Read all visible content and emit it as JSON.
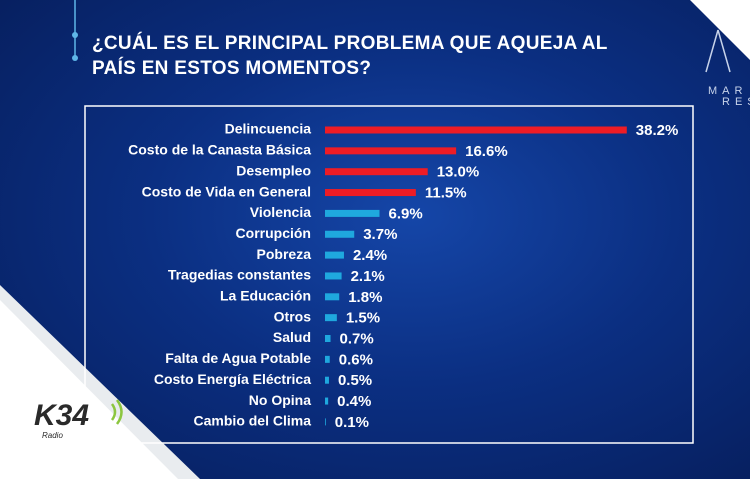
{
  "chart_data": {
    "type": "bar",
    "orientation": "horizontal",
    "title": "¿CUÁL ES EL PRINCIPAL PROBLEMA QUE AQUEJA AL PAÍS EN ESTOS MOMENTOS?",
    "categories": [
      "Delincuencia",
      "Costo de la Canasta Básica",
      "Desempleo",
      "Costo de Vida en General",
      "Violencia",
      "Corrupción",
      "Pobreza",
      "Tragedias constantes",
      "La Educación",
      "Otros",
      "Salud",
      "Falta de Agua Potable",
      "Costo Energía Eléctrica",
      "No Opina",
      "Cambio del Clima"
    ],
    "values": [
      38.2,
      16.6,
      13.0,
      11.5,
      6.9,
      3.7,
      2.4,
      2.1,
      1.8,
      1.5,
      0.7,
      0.6,
      0.5,
      0.4,
      0.1
    ],
    "value_labels": [
      "38.2%",
      "16.6%",
      "13.0%",
      "11.5%",
      "6.9%",
      "3.7%",
      "2.4%",
      "2.1%",
      "1.8%",
      "1.5%",
      "0.7%",
      "0.6%",
      "0.5%",
      "0.4%",
      "0.1%"
    ],
    "colors": [
      "#ee1c25",
      "#ee1c25",
      "#ee1c25",
      "#ee1c25",
      "#1fa8de",
      "#1fa8de",
      "#1fa8de",
      "#1fa8de",
      "#1fa8de",
      "#1fa8de",
      "#1fa8de",
      "#1fa8de",
      "#1fa8de",
      "#1fa8de",
      "#1fa8de"
    ]
  },
  "logo": {
    "text": "K34",
    "sub": "Radio"
  },
  "corner_text": [
    "MAR",
    "RES"
  ]
}
